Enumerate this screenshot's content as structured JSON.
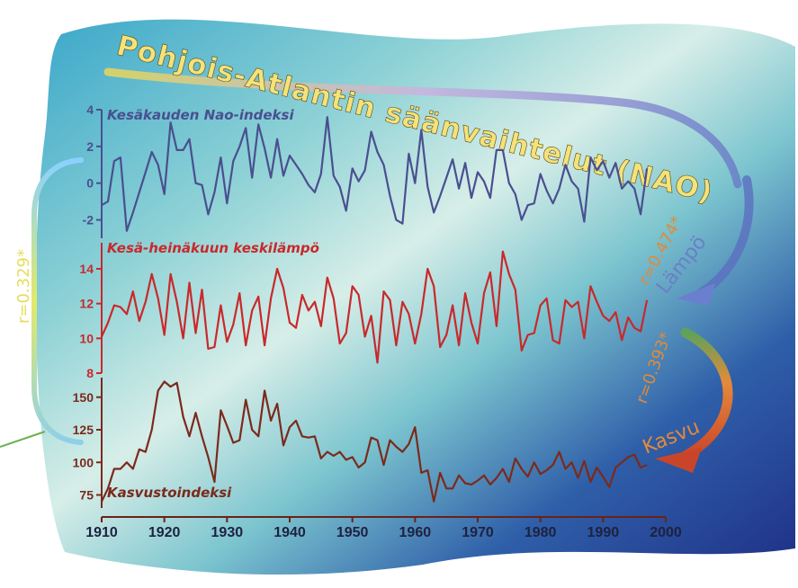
{
  "title": "Pohjois-Atlantin säänvaihtelut (NAO)",
  "colors": {
    "nao": "#4a4f8f",
    "temp": "#c8292b",
    "growth": "#7b2a1c",
    "corr_orange": "#e08a3a",
    "title_fill": "#f4e27a"
  },
  "correlations": {
    "nao_temp": "r=0.474*",
    "temp_growth": "r=0.393*",
    "nao_growth": "r=0.329*"
  },
  "arrow_labels": {
    "temp": "Lämpö",
    "growth": "Kasvu"
  },
  "chart_data": {
    "type": "line",
    "x_axis": {
      "range": [
        1910,
        2000
      ],
      "ticks": [
        "1910",
        "1920",
        "1930",
        "1940",
        "1950",
        "1960",
        "1970",
        "1980",
        "1990",
        "2000"
      ]
    },
    "panels": [
      {
        "name": "Kesäkauden Nao-indeksi",
        "ylim": [
          -3,
          4
        ],
        "yticks": [
          "4",
          "2",
          "0",
          "-2"
        ],
        "ytick_values": [
          4,
          2,
          0,
          -2
        ],
        "x": [
          1910,
          1911,
          1912,
          1913,
          1914,
          1915,
          1916,
          1917,
          1918,
          1919,
          1920,
          1921,
          1922,
          1923,
          1924,
          1925,
          1926,
          1927,
          1928,
          1929,
          1930,
          1931,
          1932,
          1933,
          1934,
          1935,
          1936,
          1937,
          1938,
          1939,
          1940,
          1941,
          1942,
          1943,
          1944,
          1945,
          1946,
          1947,
          1948,
          1949,
          1950,
          1951,
          1952,
          1953,
          1954,
          1955,
          1956,
          1957,
          1958,
          1959,
          1960,
          1961,
          1962,
          1963,
          1964,
          1965,
          1966,
          1967,
          1968,
          1969,
          1970,
          1971,
          1972,
          1973,
          1974,
          1975,
          1976,
          1977,
          1978,
          1979,
          1980,
          1981,
          1982,
          1983,
          1984,
          1985,
          1986,
          1987,
          1988,
          1989,
          1990,
          1991,
          1992,
          1993,
          1994,
          1995,
          1996,
          1997
        ],
        "y": [
          -1.2,
          -1.0,
          1.2,
          1.4,
          -2.6,
          -1.6,
          -0.5,
          0.6,
          1.7,
          1.0,
          -0.6,
          3.3,
          1.8,
          1.8,
          2.4,
          0.0,
          -0.1,
          -1.7,
          -0.5,
          1.4,
          -1.1,
          1.2,
          2.0,
          3.0,
          0.3,
          3.2,
          1.9,
          0.3,
          2.4,
          0.4,
          1.5,
          1.0,
          0.5,
          -0.1,
          -0.5,
          0.5,
          3.6,
          0.4,
          -0.2,
          -1.5,
          0.8,
          0.1,
          0.7,
          2.8,
          1.7,
          1.0,
          -0.7,
          -2.0,
          -2.2,
          1.6,
          0.0,
          2.9,
          -0.2,
          -1.6,
          -0.7,
          0.3,
          1.3,
          -0.3,
          1.1,
          -0.8,
          0.6,
          0.1,
          -0.8,
          1.8,
          1.8,
          0.0,
          -0.6,
          -2.0,
          -1.2,
          -1.1,
          0.5,
          -0.4,
          -1.1,
          -0.3,
          1.0,
          0.1,
          -0.3,
          -2.1,
          1.4,
          0.7,
          1.2,
          0.3,
          1.1,
          -0.3,
          0.1,
          -0.3,
          -1.7,
          0.8
        ]
      },
      {
        "name": "Kesä-heinäkuun keskilämpö",
        "ylim": [
          8,
          15.5
        ],
        "yticks": [
          "14",
          "12",
          "10",
          "8"
        ],
        "ytick_values": [
          14,
          12,
          10,
          8
        ],
        "x": [
          1910,
          1911,
          1912,
          1913,
          1914,
          1915,
          1916,
          1917,
          1918,
          1919,
          1920,
          1921,
          1922,
          1923,
          1924,
          1925,
          1926,
          1927,
          1928,
          1929,
          1930,
          1931,
          1932,
          1933,
          1934,
          1935,
          1936,
          1937,
          1938,
          1939,
          1940,
          1941,
          1942,
          1943,
          1944,
          1945,
          1946,
          1947,
          1948,
          1949,
          1950,
          1951,
          1952,
          1953,
          1954,
          1955,
          1956,
          1957,
          1958,
          1959,
          1960,
          1961,
          1962,
          1963,
          1964,
          1965,
          1966,
          1967,
          1968,
          1969,
          1970,
          1971,
          1972,
          1973,
          1974,
          1975,
          1976,
          1977,
          1978,
          1979,
          1980,
          1981,
          1982,
          1983,
          1984,
          1985,
          1986,
          1987,
          1988,
          1989,
          1990,
          1991,
          1992,
          1993,
          1994,
          1995,
          1996,
          1997
        ],
        "y": [
          10.1,
          10.9,
          11.9,
          11.8,
          11.4,
          12.7,
          11.0,
          12.1,
          13.7,
          12.3,
          10.2,
          13.7,
          12.1,
          10.0,
          13.2,
          10.3,
          12.8,
          9.4,
          9.5,
          11.9,
          9.8,
          10.8,
          12.6,
          9.6,
          11.6,
          12.4,
          9.6,
          12.3,
          14.0,
          12.9,
          10.9,
          10.6,
          12.5,
          11.6,
          12.1,
          10.7,
          13.5,
          12.3,
          9.7,
          10.3,
          13.0,
          12.5,
          10.1,
          11.3,
          8.6,
          12.7,
          12.2,
          9.6,
          12.1,
          11.4,
          9.7,
          11.4,
          14.0,
          13.0,
          9.5,
          10.2,
          11.9,
          9.6,
          12.6,
          10.9,
          9.7,
          12.6,
          13.8,
          10.7,
          15.0,
          13.7,
          12.8,
          9.3,
          10.2,
          10.3,
          11.9,
          12.3,
          9.9,
          9.7,
          12.2,
          11.8,
          12.1,
          10.0,
          13.0,
          12.1,
          11.3,
          11.0,
          11.5,
          9.9,
          11.2,
          10.6,
          10.4,
          12.2
        ]
      },
      {
        "name": "Kasvustoindeksi",
        "ylim": [
          65,
          165
        ],
        "yticks": [
          "150",
          "125",
          "100",
          "75"
        ],
        "ytick_values": [
          150,
          125,
          100,
          75
        ],
        "x": [
          1910,
          1911,
          1912,
          1913,
          1914,
          1915,
          1916,
          1917,
          1918,
          1919,
          1920,
          1921,
          1922,
          1923,
          1924,
          1925,
          1926,
          1927,
          1928,
          1929,
          1930,
          1931,
          1932,
          1933,
          1934,
          1935,
          1936,
          1937,
          1938,
          1939,
          1940,
          1941,
          1942,
          1943,
          1944,
          1945,
          1946,
          1947,
          1948,
          1949,
          1950,
          1951,
          1952,
          1953,
          1954,
          1955,
          1956,
          1957,
          1958,
          1959,
          1960,
          1961,
          1962,
          1963,
          1964,
          1965,
          1966,
          1967,
          1968,
          1969,
          1970,
          1971,
          1972,
          1973,
          1974,
          1975,
          1976,
          1977,
          1978,
          1979,
          1980,
          1981,
          1982,
          1983,
          1984,
          1985,
          1986,
          1987,
          1988,
          1989,
          1990,
          1991,
          1992,
          1993,
          1994,
          1995,
          1996,
          1997
        ],
        "y": [
          70,
          80,
          95,
          95,
          100,
          95,
          110,
          108,
          125,
          155,
          162,
          158,
          161,
          135,
          120,
          138,
          120,
          104,
          85,
          140,
          128,
          115,
          117,
          148,
          125,
          120,
          155,
          132,
          145,
          113,
          127,
          132,
          120,
          119,
          120,
          103,
          108,
          105,
          108,
          102,
          104,
          96,
          100,
          119,
          117,
          98,
          117,
          112,
          108,
          114,
          127,
          92,
          94,
          70,
          92,
          80,
          80,
          90,
          84,
          83,
          86,
          90,
          83,
          88,
          95,
          85,
          103,
          95,
          89,
          100,
          91,
          94,
          98,
          108,
          95,
          100,
          88,
          101,
          85,
          96,
          89,
          81,
          96,
          100,
          104,
          106,
          96,
          98
        ]
      }
    ]
  }
}
